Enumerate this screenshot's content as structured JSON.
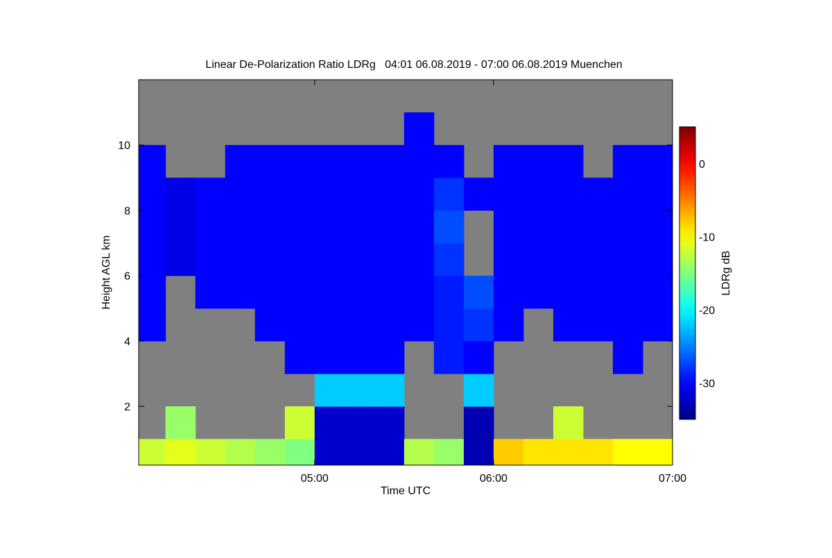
{
  "chart_data": {
    "type": "heatmap",
    "title": "Linear De-Polarization Ratio LDRg   04:01 06.08.2019 - 07:00 06.08.2019 Muenchen",
    "x_label": "Time UTC",
    "y_label": "Height AGL km",
    "colorbar_label": "LDRg dB",
    "xlim": [
      4.0167,
      7
    ],
    "xticks": [
      {
        "value": 5,
        "label": "05:00"
      },
      {
        "value": 6,
        "label": "06:00"
      },
      {
        "value": 7,
        "label": "07:00"
      }
    ],
    "ylim": [
      0.2,
      12
    ],
    "yticks": [
      2,
      4,
      6,
      8,
      10
    ],
    "clim": [
      -35,
      5
    ],
    "cticks": [
      -30,
      -20,
      -10,
      0
    ],
    "colormap": "jet",
    "missing_color": "#808080",
    "x": [
      4.083,
      4.25,
      4.417,
      4.583,
      4.75,
      4.917,
      5.083,
      5.25,
      5.417,
      5.583,
      5.75,
      5.917,
      6.083,
      6.25,
      6.417,
      6.583,
      6.75,
      6.917
    ],
    "y": [
      0.5,
      1.5,
      2.5,
      3.5,
      4.5,
      5.5,
      6.5,
      7.5,
      8.5,
      9.5,
      10.5
    ],
    "values": [
      [
        -12,
        null,
        null,
        null,
        -30,
        -30,
        -30,
        -30,
        -30,
        -30,
        null
      ],
      [
        -11,
        -14,
        null,
        null,
        null,
        null,
        -31,
        -31,
        -31,
        null,
        null
      ],
      [
        -12,
        null,
        null,
        null,
        null,
        -30,
        -30,
        -30,
        -30,
        null,
        null
      ],
      [
        -13,
        null,
        null,
        null,
        null,
        -30,
        -30,
        -30,
        -30,
        -30,
        null
      ],
      [
        -14,
        null,
        null,
        null,
        -30,
        -30,
        -30,
        -30,
        -30,
        -30,
        null
      ],
      [
        -15,
        -12,
        null,
        -30,
        -30,
        -30,
        -30,
        -30,
        -30,
        -30,
        null
      ],
      [
        -32,
        -32,
        -22,
        -30,
        -30,
        -30,
        -30,
        -30,
        -30,
        -30,
        null
      ],
      [
        -32,
        -32,
        -22,
        -30,
        -30,
        -30,
        -30,
        -30,
        -30,
        -30,
        null
      ],
      [
        -32,
        -32,
        -22,
        -30,
        -30,
        -30,
        -30,
        -30,
        -30,
        -30,
        null
      ],
      [
        -13,
        null,
        null,
        null,
        -30,
        -30,
        -30,
        -30,
        -30,
        -30,
        -30
      ],
      [
        -14,
        null,
        null,
        -29,
        -29,
        -29,
        -28,
        -27,
        -28,
        -30,
        null
      ],
      [
        -33,
        -33,
        -22,
        -30,
        -28,
        -27,
        null,
        null,
        -30,
        null,
        null
      ],
      [
        -8,
        null,
        null,
        null,
        -30,
        -30,
        -30,
        -30,
        -30,
        -30,
        null
      ],
      [
        -9,
        null,
        null,
        null,
        null,
        -30,
        -30,
        -30,
        -30,
        -30,
        null
      ],
      [
        -9,
        -12,
        null,
        null,
        -30,
        -30,
        -30,
        -30,
        -30,
        -30,
        null
      ],
      [
        -9,
        null,
        null,
        null,
        -30,
        -30,
        -30,
        -30,
        -30,
        null,
        null
      ],
      [
        -10,
        null,
        null,
        -30,
        -30,
        -30,
        -30,
        -30,
        -30,
        -30,
        null
      ],
      [
        -10,
        null,
        null,
        null,
        -30,
        -30,
        -30,
        -30,
        -30,
        -30,
        null
      ]
    ]
  }
}
